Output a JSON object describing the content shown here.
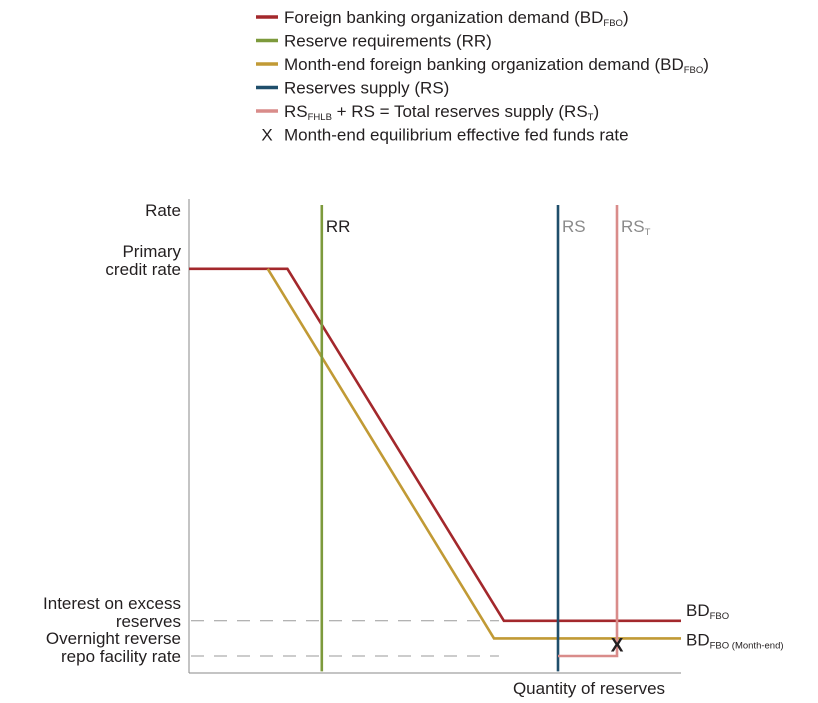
{
  "chart_data": {
    "type": "line",
    "title": "",
    "xlabel": "Quantity of reserves",
    "ylabel": "Rate",
    "xlim": [
      0,
      100
    ],
    "ylim": [
      0,
      100
    ],
    "grid": false,
    "legend_position": "top",
    "legend": [
      {
        "key": "bd_fbo",
        "main": "Foreign banking organization demand (BD",
        "sub": "FBO",
        "tail": ")",
        "color": "#a3282c"
      },
      {
        "key": "rr",
        "main": "Reserve requirements (RR)",
        "sub": "",
        "tail": "",
        "color": "#7d9a3c"
      },
      {
        "key": "bd_me",
        "main": "Month-end foreign banking organization demand (BD",
        "sub": "FBO",
        "tail": ")",
        "color": "#c19a35"
      },
      {
        "key": "rs",
        "main": "Reserves supply (RS)",
        "sub": "",
        "tail": "",
        "color": "#1f4e6b"
      },
      {
        "key": "rs_t",
        "main": "RS",
        "sub": "FHLB",
        "tail": " + RS = Total reserves supply (RS",
        "sub2": "T",
        "tail2": ")",
        "color": "#d98c8a"
      },
      {
        "key": "eq",
        "marker": "X",
        "main": "Month-end equilibrium effective fed funds rate",
        "sub": "",
        "tail": "",
        "color": "#231f20"
      }
    ],
    "y_ticks": [
      {
        "lines": [
          "Primary",
          "credit rate"
        ],
        "y": 88
      },
      {
        "lines": [
          "Interest on excess",
          "reserves"
        ],
        "y": 8
      },
      {
        "lines": [
          "Overnight reverse",
          "repo facility rate"
        ],
        "y": 0
      }
    ],
    "reference_lines": [
      {
        "name": "ioer-reference",
        "y": 8
      },
      {
        "name": "onrrp-reference",
        "y": 0
      }
    ],
    "series": [
      {
        "key": "bd_fbo",
        "color": "#a3282c",
        "points": [
          [
            0,
            88
          ],
          [
            20,
            88
          ],
          [
            64,
            8
          ],
          [
            100,
            8
          ]
        ],
        "end_label": {
          "main": "BD",
          "sub": "FBO"
        }
      },
      {
        "key": "bd_me",
        "color": "#c19a35",
        "points": [
          [
            16,
            88
          ],
          [
            62,
            4
          ],
          [
            100,
            4
          ]
        ],
        "end_label": {
          "main": "BD",
          "sub": "FBO (Month-end)"
        }
      },
      {
        "key": "rr",
        "color": "#7d9a3c",
        "points": [
          [
            27,
            -3.5
          ],
          [
            27,
            102.5
          ]
        ],
        "top_label": {
          "main": "RR",
          "sub": ""
        }
      },
      {
        "key": "rs",
        "color": "#1f4e6b",
        "points": [
          [
            75,
            -3.5
          ],
          [
            75,
            102.5
          ]
        ],
        "top_label": {
          "main": "RS",
          "sub": ""
        }
      },
      {
        "key": "rs_t",
        "color": "#d98c8a",
        "points": [
          [
            75,
            0
          ],
          [
            87,
            0
          ],
          [
            87,
            102.5
          ]
        ],
        "top_label": {
          "main": "RS",
          "sub": "T"
        }
      }
    ],
    "equilibrium": {
      "marker": "X",
      "x": 87,
      "y": 4
    }
  }
}
